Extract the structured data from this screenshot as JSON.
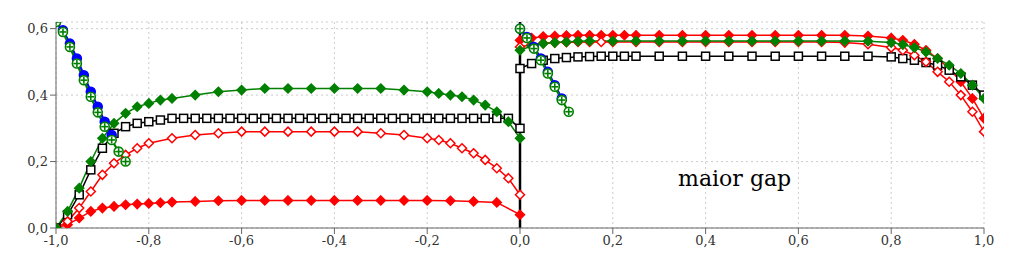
{
  "chart_data": {
    "type": "line",
    "xlim": [
      -1.0,
      1.0
    ],
    "ylim": [
      0.0,
      0.62
    ],
    "xticks": [
      {
        "value": -1.0,
        "label": "-1,0"
      },
      {
        "value": -0.8,
        "label": "-0,8"
      },
      {
        "value": -0.6,
        "label": "-0,6"
      },
      {
        "value": -0.4,
        "label": "-0,4"
      },
      {
        "value": -0.2,
        "label": "-0,2"
      },
      {
        "value": 0.0,
        "label": "0,0"
      },
      {
        "value": 0.2,
        "label": "0,2"
      },
      {
        "value": 0.4,
        "label": "0,4"
      },
      {
        "value": 0.6,
        "label": "0,6"
      },
      {
        "value": 0.8,
        "label": "0,8"
      },
      {
        "value": 1.0,
        "label": "1,0"
      }
    ],
    "yticks": [
      {
        "value": 0.0,
        "label": "0,0"
      },
      {
        "value": 0.2,
        "label": "0,2"
      },
      {
        "value": 0.4,
        "label": "0,4"
      },
      {
        "value": 0.6,
        "label": "0,6"
      }
    ],
    "grid": true,
    "annotations": [
      {
        "type": "text",
        "text": "maior gap",
        "x": 0.33,
        "y": 0.15
      },
      {
        "type": "vline",
        "x": 0.0
      }
    ],
    "series": [
      {
        "color": "red",
        "marker": "diamond",
        "x": [
          -1.0,
          -0.975,
          -0.95,
          -0.925,
          -0.9,
          -0.875,
          -0.85,
          -0.825,
          -0.8,
          -0.775,
          -0.75,
          -0.7,
          -0.65,
          -0.6,
          -0.55,
          -0.5,
          -0.45,
          -0.4,
          -0.35,
          -0.3,
          -0.25,
          -0.2,
          -0.15,
          -0.1,
          -0.05,
          0.0
        ],
        "values": [
          0.0,
          0.01,
          0.03,
          0.05,
          0.06,
          0.065,
          0.07,
          0.072,
          0.074,
          0.076,
          0.078,
          0.08,
          0.082,
          0.083,
          0.083,
          0.083,
          0.083,
          0.083,
          0.083,
          0.083,
          0.083,
          0.083,
          0.082,
          0.08,
          0.077,
          0.04
        ]
      },
      {
        "color": "red",
        "marker": "diamond",
        "x": [
          0.0,
          0.025,
          0.05,
          0.075,
          0.1,
          0.125,
          0.15,
          0.175,
          0.2,
          0.225,
          0.25,
          0.3,
          0.35,
          0.4,
          0.45,
          0.5,
          0.55,
          0.6,
          0.65,
          0.7,
          0.75,
          0.8,
          0.825,
          0.85,
          0.875,
          0.9,
          0.925,
          0.95,
          0.975,
          1.0
        ],
        "values": [
          0.565,
          0.572,
          0.576,
          0.578,
          0.579,
          0.58,
          0.58,
          0.58,
          0.58,
          0.58,
          0.58,
          0.58,
          0.58,
          0.58,
          0.58,
          0.58,
          0.58,
          0.58,
          0.58,
          0.58,
          0.578,
          0.572,
          0.565,
          0.553,
          0.535,
          0.51,
          0.48,
          0.44,
          0.39,
          0.33
        ]
      },
      {
        "color": "black",
        "marker": "open_square",
        "x": [
          -1.0,
          -0.975,
          -0.95,
          -0.925,
          -0.9,
          -0.875,
          -0.85,
          -0.825,
          -0.8,
          -0.775,
          -0.75,
          -0.725,
          -0.7,
          -0.675,
          -0.65,
          -0.625,
          -0.6,
          -0.575,
          -0.55,
          -0.525,
          -0.5,
          -0.475,
          -0.45,
          -0.425,
          -0.4,
          -0.375,
          -0.35,
          -0.325,
          -0.3,
          -0.275,
          -0.25,
          -0.225,
          -0.2,
          -0.175,
          -0.15,
          -0.125,
          -0.1,
          -0.075,
          -0.05,
          -0.025,
          0.0
        ],
        "values": [
          0.0,
          0.04,
          0.1,
          0.175,
          0.24,
          0.285,
          0.305,
          0.315,
          0.32,
          0.325,
          0.33,
          0.33,
          0.33,
          0.33,
          0.33,
          0.33,
          0.33,
          0.33,
          0.33,
          0.33,
          0.33,
          0.33,
          0.33,
          0.33,
          0.33,
          0.33,
          0.33,
          0.33,
          0.33,
          0.33,
          0.33,
          0.33,
          0.33,
          0.33,
          0.33,
          0.33,
          0.33,
          0.33,
          0.33,
          0.33,
          0.3
        ]
      },
      {
        "color": "black",
        "marker": "open_square",
        "x": [
          0.0,
          0.025,
          0.05,
          0.075,
          0.1,
          0.125,
          0.15,
          0.175,
          0.2,
          0.225,
          0.25,
          0.3,
          0.35,
          0.4,
          0.45,
          0.5,
          0.55,
          0.6,
          0.65,
          0.7,
          0.75,
          0.8,
          0.825,
          0.85,
          0.875,
          0.9,
          0.925,
          0.95,
          0.975,
          1.0
        ],
        "values": [
          0.48,
          0.495,
          0.505,
          0.51,
          0.513,
          0.515,
          0.516,
          0.517,
          0.517,
          0.517,
          0.517,
          0.517,
          0.517,
          0.517,
          0.517,
          0.517,
          0.517,
          0.517,
          0.517,
          0.517,
          0.517,
          0.515,
          0.51,
          0.505,
          0.498,
          0.49,
          0.475,
          0.455,
          0.43,
          0.4
        ]
      },
      {
        "color": "red",
        "marker": "open_diamond",
        "x": [
          -1.0,
          -0.975,
          -0.95,
          -0.925,
          -0.9,
          -0.875,
          -0.85,
          -0.825,
          -0.8,
          -0.75,
          -0.7,
          -0.65,
          -0.6,
          -0.55,
          -0.5,
          -0.45,
          -0.4,
          -0.35,
          -0.3,
          -0.25,
          -0.2,
          -0.175,
          -0.15,
          -0.125,
          -0.1,
          -0.075,
          -0.05,
          -0.025,
          0.0
        ],
        "values": [
          0.0,
          0.02,
          0.06,
          0.11,
          0.16,
          0.195,
          0.22,
          0.24,
          0.255,
          0.27,
          0.28,
          0.285,
          0.29,
          0.29,
          0.29,
          0.29,
          0.29,
          0.29,
          0.285,
          0.28,
          0.27,
          0.265,
          0.255,
          0.24,
          0.225,
          0.205,
          0.18,
          0.15,
          0.1
        ]
      },
      {
        "color": "red",
        "marker": "open_diamond",
        "x": [
          0.0,
          0.025,
          0.05,
          0.075,
          0.1,
          0.125,
          0.15,
          0.175,
          0.2,
          0.25,
          0.3,
          0.35,
          0.4,
          0.45,
          0.5,
          0.55,
          0.6,
          0.65,
          0.7,
          0.75,
          0.8,
          0.825,
          0.85,
          0.875,
          0.9,
          0.925,
          0.95,
          0.975,
          1.0
        ],
        "values": [
          0.545,
          0.552,
          0.556,
          0.558,
          0.559,
          0.56,
          0.56,
          0.56,
          0.56,
          0.56,
          0.56,
          0.56,
          0.56,
          0.56,
          0.56,
          0.56,
          0.56,
          0.56,
          0.558,
          0.553,
          0.543,
          0.535,
          0.52,
          0.5,
          0.47,
          0.44,
          0.4,
          0.35,
          0.29
        ]
      },
      {
        "color": "green",
        "marker": "diamond",
        "x": [
          -1.0,
          -0.975,
          -0.95,
          -0.925,
          -0.9,
          -0.875,
          -0.85,
          -0.825,
          -0.8,
          -0.775,
          -0.75,
          -0.7,
          -0.65,
          -0.6,
          -0.55,
          -0.5,
          -0.45,
          -0.4,
          -0.35,
          -0.3,
          -0.25,
          -0.2,
          -0.175,
          -0.15,
          -0.125,
          -0.1,
          -0.075,
          -0.05,
          -0.025,
          0.0
        ],
        "values": [
          0.0,
          0.05,
          0.12,
          0.2,
          0.27,
          0.315,
          0.345,
          0.365,
          0.375,
          0.385,
          0.39,
          0.4,
          0.41,
          0.415,
          0.42,
          0.42,
          0.42,
          0.42,
          0.42,
          0.42,
          0.415,
          0.41,
          0.405,
          0.4,
          0.395,
          0.385,
          0.37,
          0.35,
          0.32,
          0.27
        ]
      },
      {
        "color": "green",
        "marker": "diamond",
        "x": [
          0.0,
          0.025,
          0.05,
          0.075,
          0.1,
          0.125,
          0.15,
          0.2,
          0.25,
          0.3,
          0.35,
          0.4,
          0.45,
          0.5,
          0.55,
          0.6,
          0.65,
          0.7,
          0.75,
          0.8,
          0.825,
          0.85,
          0.875,
          0.9,
          0.925,
          0.95,
          0.975,
          1.0
        ],
        "values": [
          0.535,
          0.548,
          0.555,
          0.558,
          0.56,
          0.562,
          0.563,
          0.563,
          0.563,
          0.563,
          0.563,
          0.563,
          0.563,
          0.563,
          0.563,
          0.563,
          0.563,
          0.563,
          0.562,
          0.558,
          0.552,
          0.543,
          0.53,
          0.51,
          0.49,
          0.465,
          0.43,
          0.39
        ]
      },
      {
        "color": "blue",
        "marker": "circle",
        "x": [
          -1.0,
          -0.985,
          -0.97,
          -0.955,
          -0.94,
          -0.925,
          -0.91,
          -0.895,
          -0.88
        ],
        "values": [
          0.62,
          0.595,
          0.555,
          0.51,
          0.46,
          0.41,
          0.365,
          0.32,
          0.28
        ]
      },
      {
        "color": "blue",
        "marker": "circle",
        "x": [
          0.0,
          0.015,
          0.03,
          0.045,
          0.06,
          0.075,
          0.09
        ],
        "values": [
          0.6,
          0.575,
          0.545,
          0.51,
          0.47,
          0.43,
          0.39
        ]
      },
      {
        "color": "green",
        "marker": "circle_cross",
        "x": [
          -1.0,
          -0.985,
          -0.97,
          -0.955,
          -0.94,
          -0.925,
          -0.91,
          -0.895,
          -0.88,
          -0.865,
          -0.85
        ],
        "values": [
          0.62,
          0.59,
          0.545,
          0.495,
          0.445,
          0.395,
          0.348,
          0.305,
          0.265,
          0.23,
          0.2
        ]
      },
      {
        "color": "green",
        "marker": "circle_cross",
        "x": [
          0.0,
          0.015,
          0.03,
          0.045,
          0.06,
          0.075,
          0.09,
          0.105
        ],
        "values": [
          0.6,
          0.572,
          0.54,
          0.505,
          0.465,
          0.425,
          0.385,
          0.35
        ]
      }
    ]
  }
}
